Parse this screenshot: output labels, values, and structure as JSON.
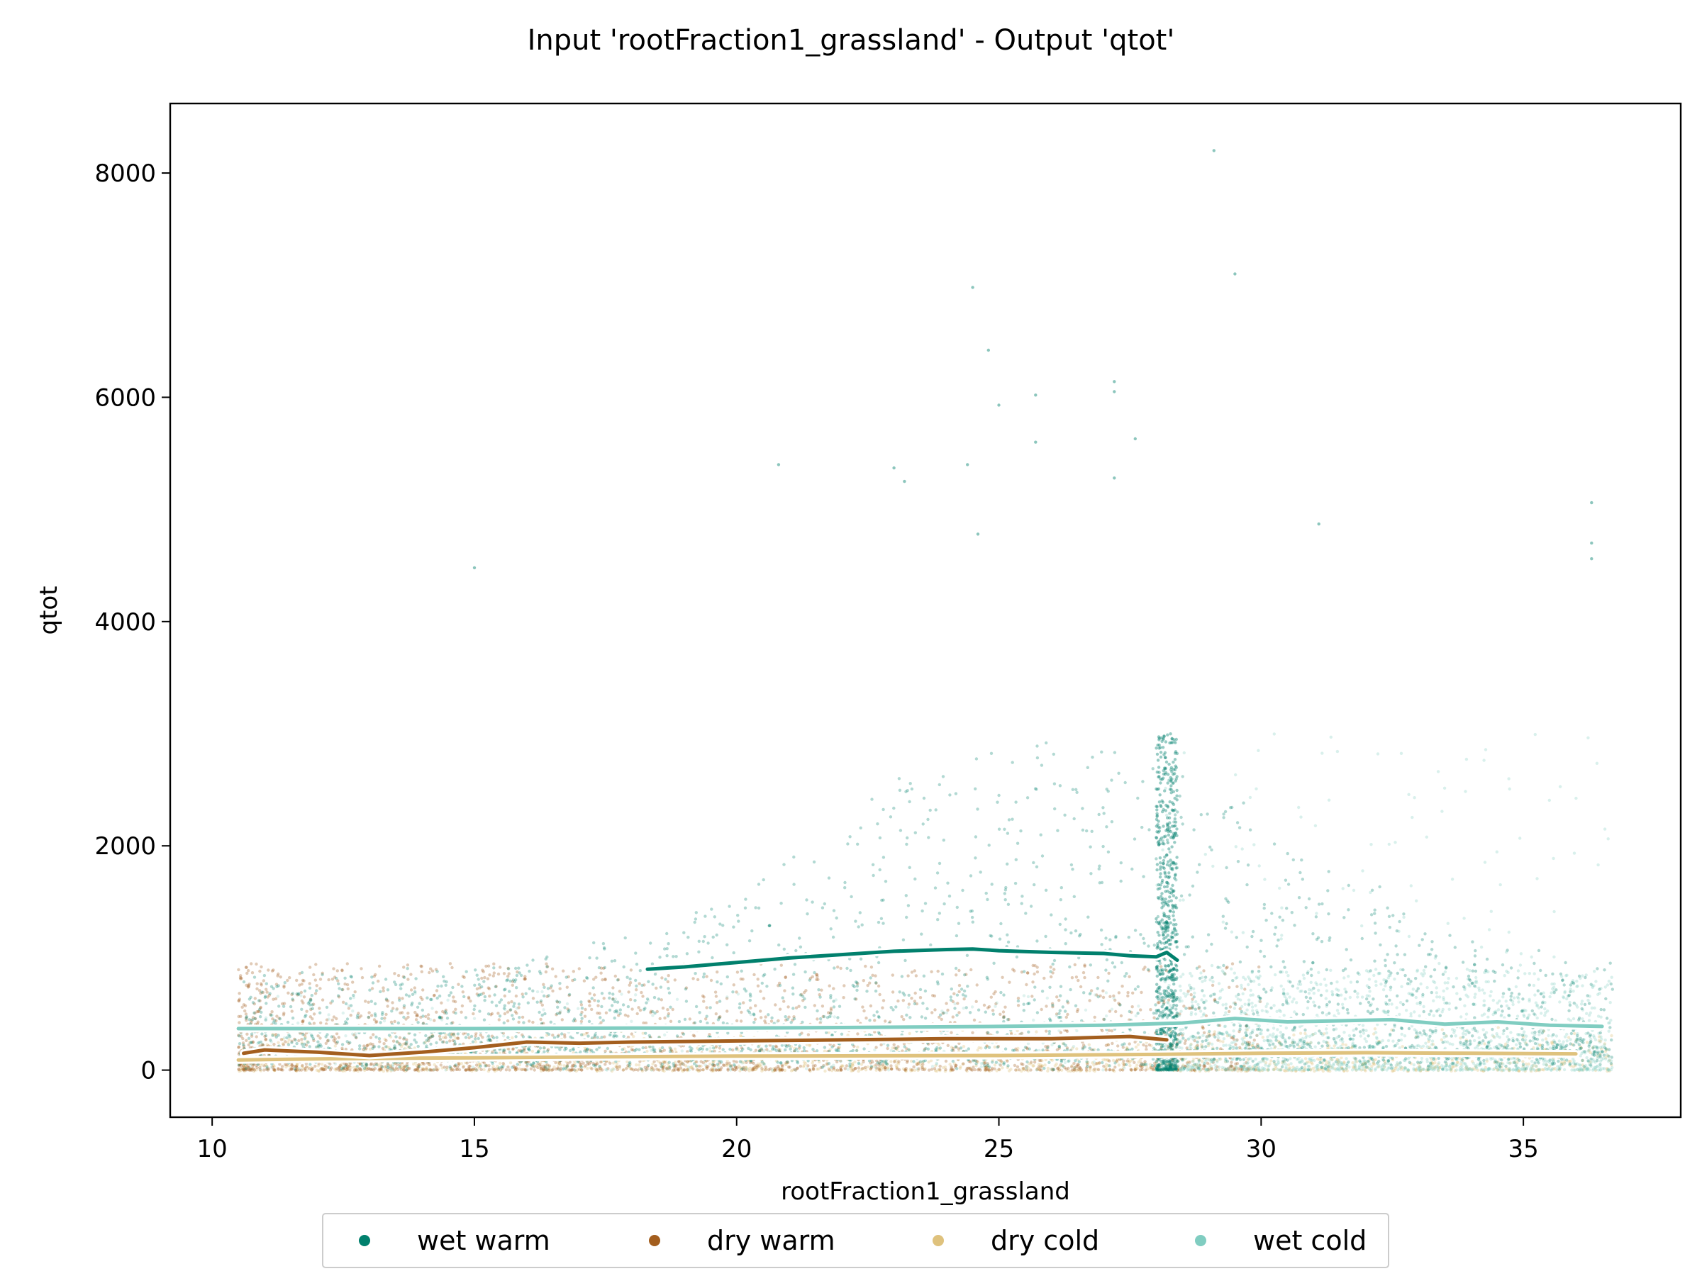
{
  "chart_data": {
    "type": "scatter",
    "title": "Input 'rootFraction1_grassland' - Output 'qtot'",
    "xlabel": "rootFraction1_grassland",
    "ylabel": "qtot",
    "xlim": [
      9.2,
      38.0
    ],
    "ylim": [
      -420,
      8620
    ],
    "xticks": [
      10,
      15,
      20,
      25,
      30,
      35
    ],
    "yticks": [
      0,
      2000,
      4000,
      6000,
      8000
    ],
    "grid": false,
    "legend_position": "bottom-center",
    "series": [
      {
        "name": "wet warm",
        "color": "#01806d",
        "point_alpha": 0.3,
        "x_range": [
          10.5,
          36.7
        ],
        "trend": {
          "x": [
            18.3,
            19.0,
            20.0,
            21.0,
            22.0,
            23.0,
            24.0,
            24.5,
            25.0,
            26.0,
            27.0,
            27.5,
            28.0,
            28.2,
            28.4
          ],
          "y": [
            900,
            920,
            960,
            1000,
            1030,
            1060,
            1075,
            1080,
            1065,
            1050,
            1040,
            1020,
            1010,
            1050,
            980
          ]
        }
      },
      {
        "name": "dry warm",
        "color": "#a35e1e",
        "point_alpha": 0.3,
        "x_range": [
          10.5,
          36.7
        ],
        "trend": {
          "x": [
            10.6,
            11.0,
            12.0,
            13.0,
            14.0,
            15.0,
            16.0,
            17.0,
            18.0,
            20.0,
            22.0,
            24.0,
            26.0,
            27.5,
            28.2
          ],
          "y": [
            150,
            180,
            160,
            130,
            160,
            200,
            250,
            240,
            250,
            260,
            270,
            280,
            280,
            300,
            270
          ]
        }
      },
      {
        "name": "dry cold",
        "color": "#dfc27d",
        "point_alpha": 0.3,
        "x_range": [
          10.5,
          36.7
        ],
        "trend": {
          "x": [
            10.5,
            12.0,
            15.0,
            18.0,
            20.0,
            25.0,
            28.0,
            30.0,
            32.0,
            34.0,
            36.0
          ],
          "y": [
            90,
            100,
            110,
            120,
            125,
            130,
            140,
            150,
            155,
            150,
            145
          ]
        }
      },
      {
        "name": "wet cold",
        "color": "#80cdc1",
        "point_alpha": 0.3,
        "x_range": [
          10.5,
          36.7
        ],
        "trend": {
          "x": [
            10.5,
            12.0,
            15.0,
            18.0,
            20.0,
            22.0,
            25.0,
            27.0,
            28.5,
            29.5,
            30.5,
            31.5,
            32.5,
            33.5,
            34.5,
            35.5,
            36.5
          ],
          "y": [
            370,
            370,
            370,
            375,
            375,
            380,
            390,
            400,
            420,
            460,
            430,
            440,
            450,
            410,
            430,
            400,
            390
          ]
        }
      }
    ],
    "notable_points": [
      {
        "x": 29.1,
        "y": 8200,
        "series": "wet warm"
      },
      {
        "x": 29.5,
        "y": 7100,
        "series": "wet warm"
      },
      {
        "x": 24.5,
        "y": 6980,
        "series": "wet warm"
      },
      {
        "x": 24.8,
        "y": 6420,
        "series": "wet warm"
      },
      {
        "x": 25.7,
        "y": 6020,
        "series": "wet warm"
      },
      {
        "x": 27.2,
        "y": 6140,
        "series": "wet warm"
      },
      {
        "x": 27.2,
        "y": 6050,
        "series": "wet warm"
      },
      {
        "x": 25.0,
        "y": 5930,
        "series": "wet warm"
      },
      {
        "x": 27.6,
        "y": 5630,
        "series": "wet warm"
      },
      {
        "x": 25.7,
        "y": 5600,
        "series": "wet warm"
      },
      {
        "x": 20.8,
        "y": 5400,
        "series": "wet warm"
      },
      {
        "x": 23.0,
        "y": 5370,
        "series": "wet warm"
      },
      {
        "x": 24.4,
        "y": 5400,
        "series": "wet warm"
      },
      {
        "x": 27.2,
        "y": 5280,
        "series": "wet warm"
      },
      {
        "x": 23.2,
        "y": 5250,
        "series": "wet warm"
      },
      {
        "x": 36.3,
        "y": 5060,
        "series": "wet warm"
      },
      {
        "x": 15.0,
        "y": 4480,
        "series": "wet warm"
      },
      {
        "x": 24.6,
        "y": 4780,
        "series": "wet warm"
      },
      {
        "x": 31.1,
        "y": 4870,
        "series": "wet warm"
      },
      {
        "x": 36.3,
        "y": 4700,
        "series": "wet warm"
      },
      {
        "x": 36.3,
        "y": 4560,
        "series": "wet warm"
      }
    ]
  },
  "legend": {
    "items": [
      {
        "label": "wet warm",
        "color": "#01806d"
      },
      {
        "label": "dry warm",
        "color": "#a35e1e"
      },
      {
        "label": "dry cold",
        "color": "#dfc27d"
      },
      {
        "label": "wet cold",
        "color": "#80cdc1"
      }
    ]
  }
}
